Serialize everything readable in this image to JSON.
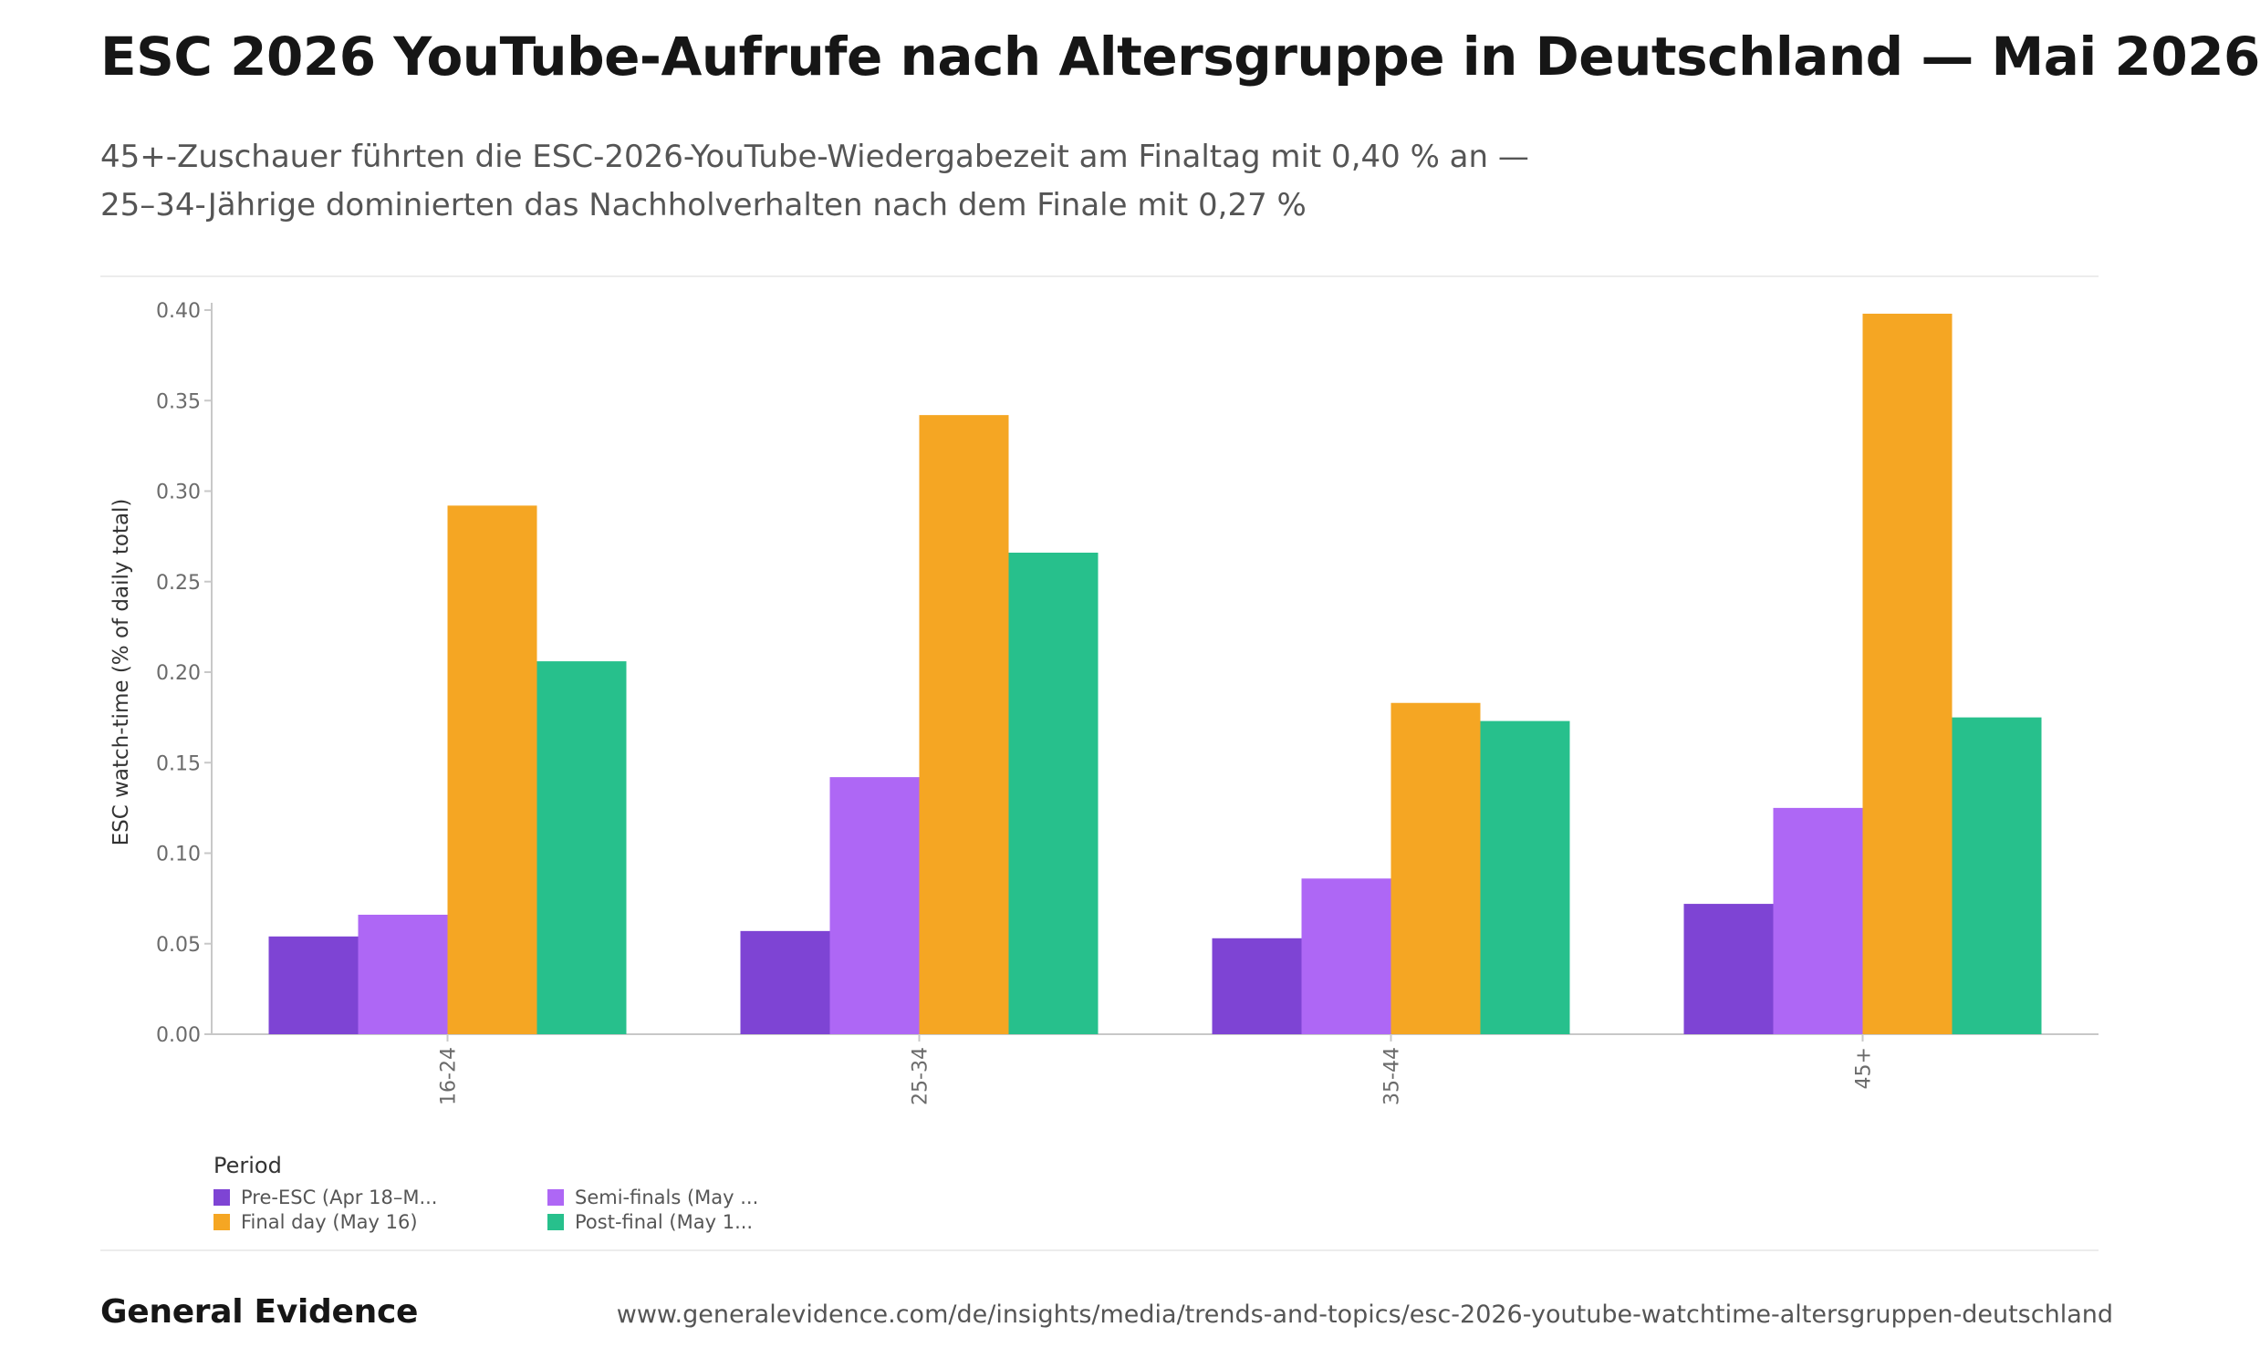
{
  "header": {
    "title": "ESC 2026 YouTube-Aufrufe nach Altersgruppe in Deutschland — Mai 2026",
    "subtitle_line1": "45+-Zuschauer führten die ESC-2026-YouTube-Wiedergabezeit am Finaltag mit 0,40 % an —",
    "subtitle_line2": "25–34-Jährige dominierten das Nachholverhalten nach dem Finale mit 0,27 %"
  },
  "chart_data": {
    "type": "bar",
    "ylabel": "ESC watch-time (% of daily total)",
    "xlabel": "",
    "ylim": [
      0,
      0.4
    ],
    "yticks": [
      0.0,
      0.05,
      0.1,
      0.15,
      0.2,
      0.25,
      0.3,
      0.35,
      0.4
    ],
    "ytick_labels": [
      "0.00",
      "0.05",
      "0.10",
      "0.15",
      "0.20",
      "0.25",
      "0.30",
      "0.35",
      "0.40"
    ],
    "grid": false,
    "categories": [
      "16-24",
      "25-34",
      "35-44",
      "45+"
    ],
    "legend": {
      "title": "Period",
      "placement": "bottom-left"
    },
    "series": [
      {
        "name": "Pre-ESC (Apr 18–M...",
        "color": "#7e44d4",
        "values": [
          0.054,
          0.057,
          0.053,
          0.072
        ]
      },
      {
        "name": "Semi-finals (May ...",
        "color": "#ae67f5",
        "values": [
          0.066,
          0.142,
          0.086,
          0.125
        ]
      },
      {
        "name": "Final day (May 16)",
        "color": "#f5a623",
        "values": [
          0.292,
          0.342,
          0.183,
          0.398
        ]
      },
      {
        "name": "Post-final (May 1...",
        "color": "#27c08c",
        "values": [
          0.206,
          0.266,
          0.173,
          0.175
        ]
      }
    ],
    "legend_order": [
      0,
      1,
      2,
      3
    ]
  },
  "footer": {
    "brand": "General Evidence",
    "url": "www.generalevidence.com/de/insights/media/trends-and-topics/esc-2026-youtube-watchtime-altersgruppen-deutschland"
  }
}
